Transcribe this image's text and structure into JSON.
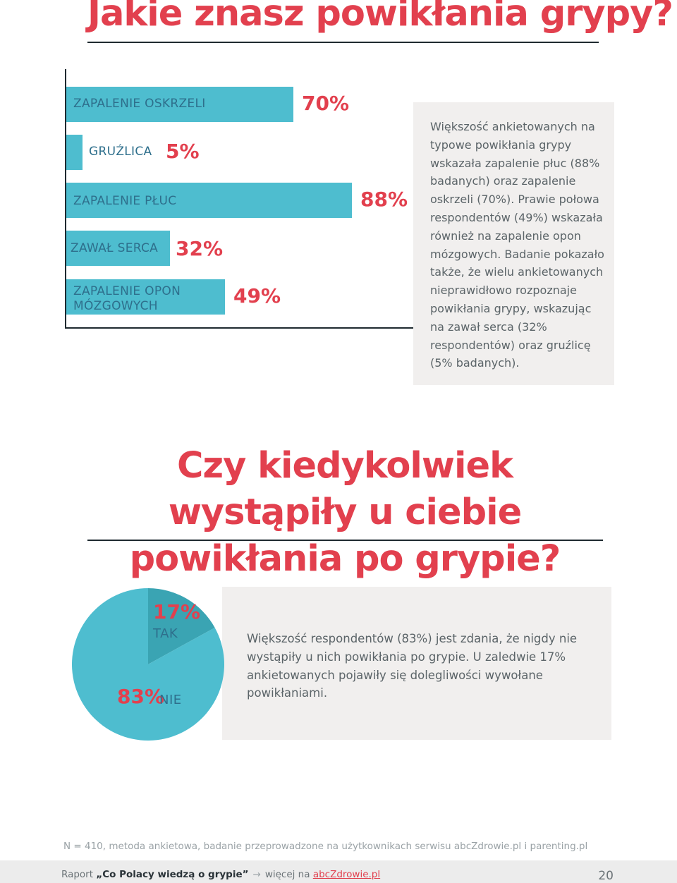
{
  "page": {
    "title": "Jakie znasz powikłania grypy?",
    "title2": "Czy kiedykolwiek wystąpiły u ciebie powikłania po grypie?"
  },
  "chart_data": [
    {
      "type": "bar",
      "orientation": "horizontal",
      "title": "",
      "categories": [
        "ZAPALENIE OSKRZELI",
        "GRUŹLICA",
        "ZAPALENIE PŁUC",
        "ZAWAŁ SERCA",
        "ZAPALENIE OPON MÓZGOWYCH"
      ],
      "values": [
        70,
        5,
        88,
        32,
        49
      ],
      "value_labels": [
        "70%",
        "5%",
        "88%",
        "32%",
        "49%"
      ],
      "unit": "%",
      "xlim": [
        0,
        100
      ],
      "grid": false,
      "colors": {
        "bar": "#4ebdcf",
        "value": "#e2404e",
        "label": "#2e6f8c"
      }
    },
    {
      "type": "pie",
      "title": "",
      "categories": [
        "TAK",
        "NIE"
      ],
      "values": [
        17,
        83
      ],
      "value_labels": [
        "17%",
        "83%"
      ],
      "colors": [
        "#3aa4b3",
        "#4ebdcf"
      ]
    }
  ],
  "notes": {
    "chart1_text": "Większość ankietowanych na typowe powikłania grypy wskazała zapalenie płuc (88% badanych) oraz zapalenie oskrzeli (70%). Prawie połowa respondentów (49%) wskazała również na zapalenie opon mózgowych. Badanie pokazało także, że wielu ankietowanych nieprawidłowo rozpoznaje powikłania grypy, wskazując na zawał serca (32% respondentów) oraz gruźlicę (5% badanych).",
    "chart2_text": "Większość respondentów (83%) jest zdania, że nigdy nie wystąpiły u nich powikłania po grypie. U zaledwie 17% ankietowanych pojawiły się dolegliwości wywołane powikłaniami."
  },
  "footnote": "N = 410, metoda ankietowa, badanie przeprowadzone na użytkownikach serwisu abcZdrowie.pl i parenting.pl",
  "footer": {
    "prefix": "Raport ",
    "report_name": "„Co Polacy wiedzą o grypie”",
    "arrow": "→",
    "more": "więcej na ",
    "link": "abcZdrowie.pl",
    "page_number": "20"
  },
  "colors": {
    "accent": "#e2404e",
    "teal": "#4ebdcf",
    "box": "#f1efee"
  }
}
